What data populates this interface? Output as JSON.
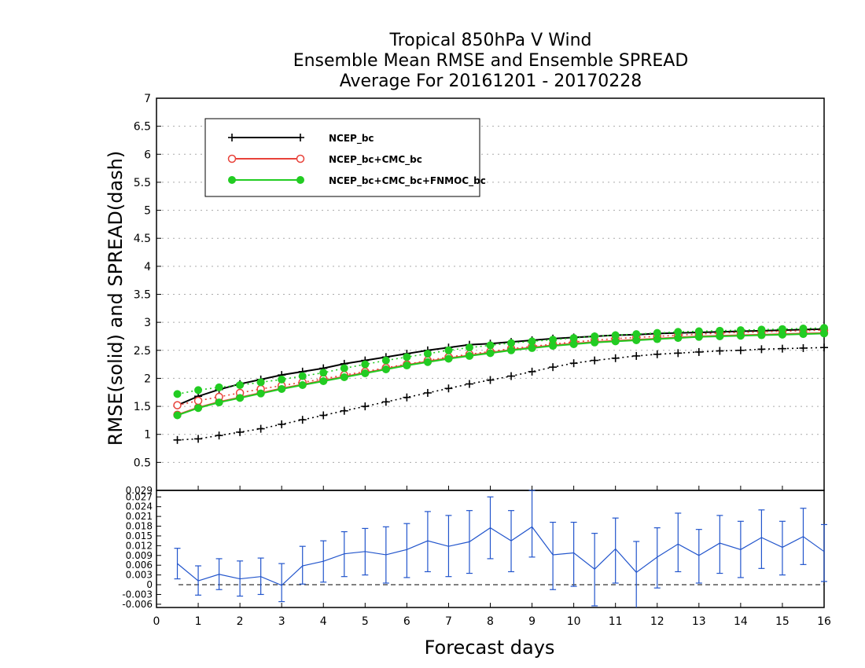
{
  "chart_data": [
    {
      "type": "line",
      "title": [
        "Tropical 850hPa V Wind",
        "Ensemble Mean RMSE and Ensemble SPREAD",
        "Average For 20161201 - 20170228"
      ],
      "ylabel": "RMSE(solid)  and  SPREAD(dash)",
      "xlim": [
        0,
        16
      ],
      "ylim": [
        0,
        7
      ],
      "yticks": [
        "0.5",
        "1",
        "1.5",
        "2",
        "2.5",
        "3",
        "3.5",
        "4",
        "4.5",
        "5",
        "5.5",
        "6",
        "6.5",
        "7"
      ],
      "grid": true,
      "legend_position": "top-left",
      "x": [
        0.5,
        1,
        1.5,
        2,
        2.5,
        3,
        3.5,
        4,
        4.5,
        5,
        5.5,
        6,
        6.5,
        7,
        7.5,
        8,
        8.5,
        9,
        9.5,
        10,
        10.5,
        11,
        11.5,
        12,
        12.5,
        13,
        13.5,
        14,
        14.5,
        15,
        15.5,
        16
      ],
      "series": [
        {
          "name": "NCEP_bc",
          "color": "#000000",
          "marker": "plus",
          "rmse": [
            1.52,
            1.68,
            1.8,
            1.9,
            1.98,
            2.06,
            2.12,
            2.18,
            2.26,
            2.32,
            2.38,
            2.44,
            2.5,
            2.55,
            2.6,
            2.62,
            2.65,
            2.68,
            2.71,
            2.73,
            2.75,
            2.77,
            2.78,
            2.8,
            2.81,
            2.82,
            2.83,
            2.84,
            2.85,
            2.86,
            2.87,
            2.88
          ],
          "spread": [
            0.9,
            0.92,
            0.98,
            1.04,
            1.1,
            1.18,
            1.26,
            1.34,
            1.42,
            1.5,
            1.58,
            1.66,
            1.74,
            1.82,
            1.9,
            1.97,
            2.04,
            2.12,
            2.2,
            2.27,
            2.32,
            2.36,
            2.4,
            2.43,
            2.45,
            2.47,
            2.49,
            2.5,
            2.52,
            2.53,
            2.54,
            2.55
          ]
        },
        {
          "name": "NCEP_bc+CMC_bc",
          "color": "#e8423a",
          "marker": "open-circle",
          "rmse": [
            1.35,
            1.48,
            1.58,
            1.66,
            1.74,
            1.82,
            1.89,
            1.96,
            2.03,
            2.1,
            2.17,
            2.24,
            2.3,
            2.36,
            2.41,
            2.46,
            2.51,
            2.55,
            2.59,
            2.62,
            2.65,
            2.67,
            2.69,
            2.71,
            2.73,
            2.75,
            2.76,
            2.77,
            2.78,
            2.79,
            2.8,
            2.81
          ],
          "spread": [
            1.52,
            1.6,
            1.67,
            1.74,
            1.81,
            1.87,
            1.93,
            1.99,
            2.06,
            2.12,
            2.19,
            2.25,
            2.32,
            2.38,
            2.43,
            2.48,
            2.53,
            2.57,
            2.61,
            2.65,
            2.68,
            2.71,
            2.73,
            2.75,
            2.77,
            2.79,
            2.81,
            2.82,
            2.83,
            2.84,
            2.85,
            2.86
          ]
        },
        {
          "name": "NCEP_bc+CMC_bc+FNMOC_bc",
          "color": "#22cc22",
          "marker": "filled-circle",
          "rmse": [
            1.34,
            1.47,
            1.57,
            1.65,
            1.73,
            1.81,
            1.88,
            1.95,
            2.02,
            2.09,
            2.16,
            2.23,
            2.29,
            2.35,
            2.4,
            2.45,
            2.5,
            2.54,
            2.58,
            2.61,
            2.64,
            2.66,
            2.68,
            2.7,
            2.72,
            2.74,
            2.75,
            2.76,
            2.77,
            2.78,
            2.79,
            2.8
          ],
          "spread": [
            1.72,
            1.79,
            1.84,
            1.88,
            1.93,
            1.98,
            2.04,
            2.1,
            2.18,
            2.25,
            2.32,
            2.38,
            2.44,
            2.5,
            2.55,
            2.59,
            2.63,
            2.66,
            2.69,
            2.72,
            2.75,
            2.77,
            2.79,
            2.81,
            2.83,
            2.84,
            2.85,
            2.86,
            2.87,
            2.88,
            2.89,
            2.9
          ]
        }
      ]
    },
    {
      "type": "line",
      "title": "",
      "xlabel": "Forecast days",
      "xticks": [
        "0",
        "1",
        "2",
        "3",
        "4",
        "5",
        "6",
        "7",
        "8",
        "9",
        "10",
        "11",
        "12",
        "13",
        "14",
        "15",
        "16"
      ],
      "xlim": [
        0,
        16
      ],
      "ylim": [
        -0.007,
        0.029
      ],
      "yticks": [
        "-0.006",
        "-0.003",
        "0",
        "0.003",
        "0.006",
        "0.009",
        "0.012",
        "0.015",
        "0.018",
        "0.021",
        "0.024",
        "0.027",
        "0.029"
      ],
      "reference_line": 0,
      "series": [
        {
          "name": "",
          "color": "#2255cc",
          "x": [
            0.5,
            1,
            1.5,
            2,
            2.5,
            3,
            3.5,
            4,
            4.5,
            5,
            5.5,
            6,
            6.5,
            7,
            7.5,
            8,
            8.5,
            9,
            9.5,
            10,
            10.5,
            11,
            11.5,
            12,
            12.5,
            13,
            13.5,
            14,
            14.5,
            15,
            15.5,
            16
          ],
          "values": [
            0.0065,
            0.0012,
            0.0032,
            0.0018,
            0.0025,
            -0.0002,
            0.0058,
            0.0072,
            0.0095,
            0.0102,
            0.0092,
            0.0108,
            0.0135,
            0.0118,
            0.0132,
            0.0175,
            0.0135,
            0.0178,
            0.0092,
            0.0098,
            0.0048,
            0.011,
            0.0038,
            0.0085,
            0.0125,
            0.009,
            0.0128,
            0.0108,
            0.0145,
            0.0115,
            0.0148,
            0.0102
          ],
          "error_low": [
            0.0018,
            -0.0032,
            -0.0015,
            -0.0035,
            -0.003,
            -0.0052,
            0.0002,
            0.0008,
            0.0025,
            0.003,
            0.0005,
            0.0022,
            0.004,
            0.0025,
            0.0035,
            0.008,
            0.004,
            0.0085,
            -0.0015,
            -0.0005,
            -0.0065,
            0.0005,
            -0.0075,
            -0.001,
            0.004,
            0.0005,
            0.0035,
            0.0022,
            0.005,
            0.003,
            0.0062,
            0.001
          ],
          "error_high": [
            0.0112,
            0.0058,
            0.008,
            0.0073,
            0.0082,
            0.0065,
            0.0118,
            0.0135,
            0.0163,
            0.0173,
            0.0178,
            0.0188,
            0.0225,
            0.0213,
            0.0228,
            0.027,
            0.0228,
            0.029,
            0.0192,
            0.0192,
            0.0158,
            0.0205,
            0.0133,
            0.0175,
            0.022,
            0.017,
            0.0213,
            0.0195,
            0.023,
            0.0195,
            0.0235,
            0.0185
          ]
        }
      ]
    }
  ]
}
